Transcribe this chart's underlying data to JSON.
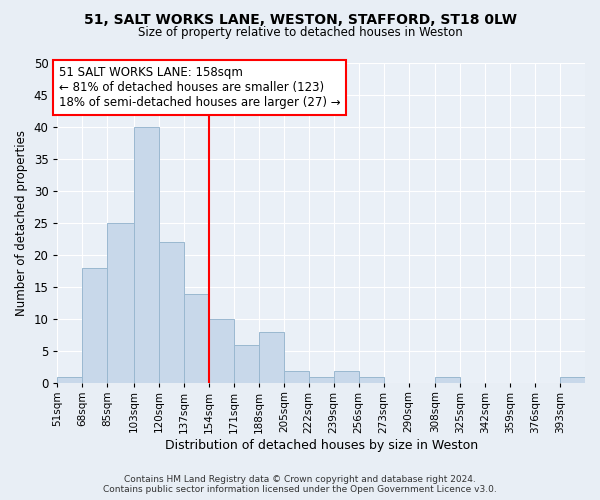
{
  "title_line1": "51, SALT WORKS LANE, WESTON, STAFFORD, ST18 0LW",
  "title_line2": "Size of property relative to detached houses in Weston",
  "xlabel": "Distribution of detached houses by size in Weston",
  "ylabel": "Number of detached properties",
  "bar_color": "#c8d8ea",
  "bar_edge_color": "#9ab8d0",
  "red_line_x": 154,
  "annotation_line1": "51 SALT WORKS LANE: 158sqm",
  "annotation_line2": "← 81% of detached houses are smaller (123)",
  "annotation_line3": "18% of semi-detached houses are larger (27) →",
  "bins": [
    51,
    68,
    85,
    103,
    120,
    137,
    154,
    171,
    188,
    205,
    222,
    239,
    256,
    273,
    290,
    308,
    325,
    342,
    359,
    376,
    393
  ],
  "counts": [
    1,
    18,
    25,
    40,
    22,
    14,
    10,
    6,
    8,
    2,
    1,
    2,
    1,
    0,
    0,
    1,
    0,
    0,
    0,
    0,
    1
  ],
  "ylim": [
    0,
    50
  ],
  "yticks": [
    0,
    5,
    10,
    15,
    20,
    25,
    30,
    35,
    40,
    45,
    50
  ],
  "footer_line1": "Contains HM Land Registry data © Crown copyright and database right 2024.",
  "footer_line2": "Contains public sector information licensed under the Open Government Licence v3.0.",
  "background_color": "#e8eef5",
  "plot_bg_color": "#eaf0f7"
}
